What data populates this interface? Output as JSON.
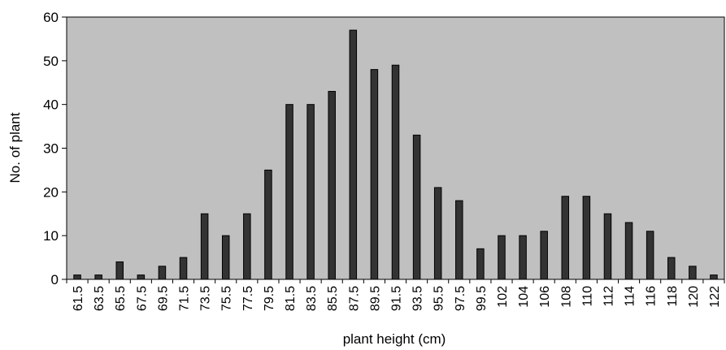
{
  "chart_data": {
    "type": "bar",
    "title": "",
    "xlabel": "plant height (cm)",
    "ylabel": "No. of plant",
    "ylim": [
      0,
      60
    ],
    "yticks": [
      0,
      10,
      20,
      30,
      40,
      50,
      60
    ],
    "grid": false,
    "legend": "none",
    "plot_background": "#c0c0c0",
    "bar_color": "#333333",
    "categories": [
      "61.5",
      "63.5",
      "65.5",
      "67.5",
      "69.5",
      "71.5",
      "73.5",
      "75.5",
      "77.5",
      "79.5",
      "81.5",
      "83.5",
      "85.5",
      "87.5",
      "89.5",
      "91.5",
      "93.5",
      "95.5",
      "97.5",
      "99.5",
      "102",
      "104",
      "106",
      "108",
      "110",
      "112",
      "114",
      "116",
      "118",
      "120",
      "122"
    ],
    "values": [
      1,
      1,
      4,
      1,
      3,
      5,
      15,
      10,
      15,
      25,
      40,
      40,
      43,
      57,
      48,
      49,
      33,
      21,
      18,
      7,
      10,
      10,
      11,
      19,
      19,
      15,
      13,
      11,
      5,
      3,
      1
    ]
  }
}
